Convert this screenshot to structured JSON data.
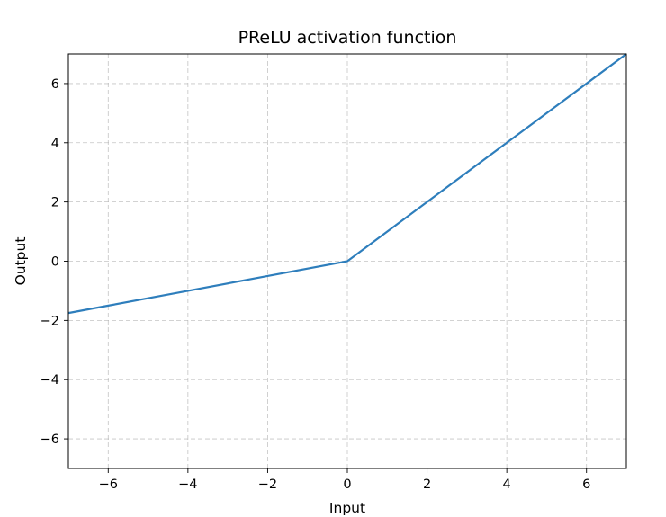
{
  "chart_data": {
    "type": "line",
    "title": "PReLU activation function",
    "xlabel": "Input",
    "ylabel": "Output",
    "xlim": [
      -7,
      7
    ],
    "ylim": [
      -7,
      7
    ],
    "xticks": [
      -6,
      -4,
      -2,
      0,
      2,
      4,
      6
    ],
    "yticks": [
      -6,
      -4,
      -2,
      0,
      2,
      4,
      6
    ],
    "xtick_labels": [
      "−6",
      "−4",
      "−2",
      "0",
      "2",
      "4",
      "6"
    ],
    "ytick_labels": [
      "−6",
      "−4",
      "−2",
      "0",
      "2",
      "4",
      "6"
    ],
    "grid": true,
    "series": [
      {
        "color": "#2e7ebc",
        "x": [
          -7,
          -6,
          -4,
          -2,
          0,
          2,
          4,
          6,
          7
        ],
        "y": [
          -1.75,
          -1.5,
          -1.0,
          -0.5,
          0,
          2,
          4,
          6,
          7
        ]
      }
    ]
  }
}
